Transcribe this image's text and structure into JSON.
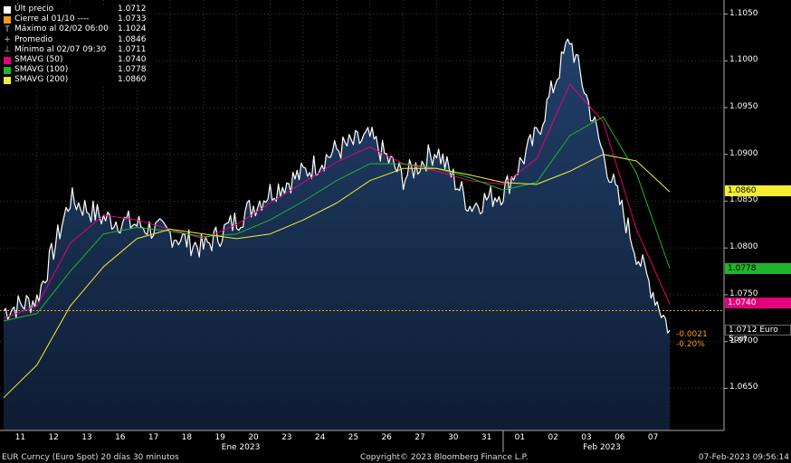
{
  "legend": [
    {
      "label": "Últ precio",
      "value": "1.0712",
      "color": "#ffffff",
      "marker": ""
    },
    {
      "label": "Cierre al 01/10 ----",
      "value": "1.0733",
      "color": "#f39c12",
      "marker": ""
    },
    {
      "label": "Máximo al 02/02 06:00",
      "value": "1.1024",
      "color": "",
      "marker": "T"
    },
    {
      "label": "Promedio",
      "value": "1.0846",
      "color": "",
      "marker": "+"
    },
    {
      "label": "Mínimo al 02/07 09:30",
      "value": "1.0711",
      "color": "",
      "marker": "⊥"
    },
    {
      "label": "SMAVG (50)",
      "value": "1.0740",
      "color": "#e4007c",
      "marker": ""
    },
    {
      "label": "SMAVG (100)",
      "value": "1.0778",
      "color": "#1fb52a",
      "marker": ""
    },
    {
      "label": "SMAVG (200)",
      "value": "1.0860",
      "color": "#f5ee30",
      "marker": ""
    }
  ],
  "y_ticks": [
    "1.1050",
    "1.1000",
    "1.0950",
    "1.0900",
    "1.0850",
    "1.0800",
    "1.0750",
    "1.0700",
    "1.0650"
  ],
  "tags": {
    "sma200": "1.0860",
    "sma100": "1.0778",
    "sma50": "1.0740",
    "last": "1.0712 Euro Spot"
  },
  "change": {
    "abs": "-0.0021",
    "pct": "-0.20%"
  },
  "x_days": [
    "11",
    "12",
    "13",
    "16",
    "17",
    "18",
    "19",
    "20",
    "23",
    "24",
    "25",
    "26",
    "27",
    "30",
    "31",
    "01",
    "02",
    "03",
    "06",
    "07"
  ],
  "months": [
    "Ene 2023",
    "Feb 2023"
  ],
  "footer": {
    "left": "EUR Curncy (Euro Spot) 20 días 30 minutos",
    "center": "Copyright© 2023 Bloomberg Finance L.P.",
    "right": "07-Feb-2023 09:56:14"
  },
  "chart_data": {
    "type": "area",
    "title": "",
    "xlabel": "",
    "ylabel": "",
    "ylim": [
      1.0605,
      1.1065
    ],
    "reference_line": {
      "label": "Cierre al 01/10",
      "value": 1.0733
    },
    "x": [
      "01-10",
      "01-11",
      "01-12",
      "01-13",
      "01-16",
      "01-17",
      "01-18",
      "01-19",
      "01-20",
      "01-23",
      "01-24",
      "01-25",
      "01-26",
      "01-27",
      "01-30",
      "01-31",
      "02-01",
      "02-02",
      "02-03",
      "02-06",
      "02-07"
    ],
    "series": [
      {
        "name": "Euro Spot",
        "color": "#ffffff",
        "values": [
          1.0733,
          1.0745,
          1.0852,
          1.0832,
          1.0825,
          1.0815,
          1.08,
          1.083,
          1.086,
          1.088,
          1.0905,
          1.0918,
          1.0875,
          1.0905,
          1.0845,
          1.086,
          1.092,
          1.1024,
          1.09,
          1.0795,
          1.0712
        ]
      },
      {
        "name": "SMAVG (50)",
        "color": "#e4007c",
        "values": [
          1.0725,
          1.0738,
          1.0805,
          1.0835,
          1.083,
          1.082,
          1.081,
          1.0825,
          1.0848,
          1.087,
          1.0892,
          1.0908,
          1.089,
          1.0882,
          1.0872,
          1.0868,
          1.0895,
          1.0975,
          1.0935,
          1.082,
          1.074
        ]
      },
      {
        "name": "SMAVG (100)",
        "color": "#1fb52a",
        "values": [
          1.0722,
          1.073,
          1.0775,
          1.0815,
          1.0822,
          1.0818,
          1.0812,
          1.0815,
          1.083,
          1.085,
          1.0872,
          1.089,
          1.089,
          1.0885,
          1.0875,
          1.0862,
          1.087,
          1.092,
          1.094,
          1.088,
          1.0778
        ]
      },
      {
        "name": "SMAVG (200)",
        "color": "#f5ee30",
        "values": [
          1.064,
          1.0675,
          1.0738,
          1.078,
          1.081,
          1.082,
          1.0815,
          1.081,
          1.0815,
          1.083,
          1.0848,
          1.0872,
          1.0885,
          1.0885,
          1.0878,
          1.087,
          1.0868,
          1.0882,
          1.09,
          1.0893,
          1.086
        ]
      }
    ],
    "grid": true,
    "legend_position": "top-left"
  }
}
